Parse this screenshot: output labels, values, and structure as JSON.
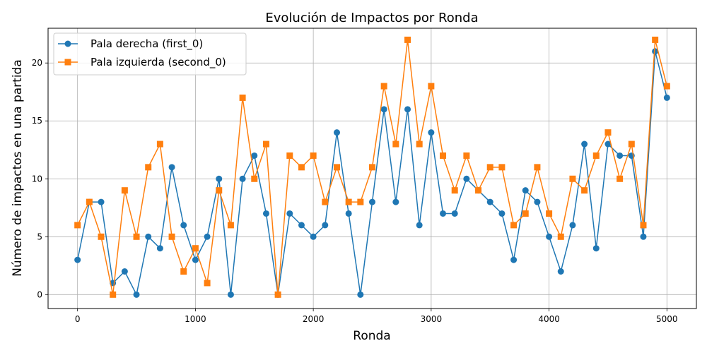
{
  "chart_data": {
    "type": "line",
    "title": "Evolución de Impactos por Ronda",
    "xlabel": "Ronda",
    "ylabel": "Número de impactos en una partida",
    "xlim": [
      -250,
      5250
    ],
    "ylim": [
      -1.2,
      23.0
    ],
    "xticks": [
      0,
      1000,
      2000,
      3000,
      4000,
      5000
    ],
    "yticks": [
      0,
      5,
      10,
      15,
      20
    ],
    "grid": true,
    "legend_position": "top-left",
    "x": [
      0,
      100,
      200,
      300,
      400,
      500,
      600,
      700,
      800,
      900,
      1000,
      1100,
      1200,
      1300,
      1400,
      1500,
      1600,
      1700,
      1800,
      1900,
      2000,
      2100,
      2200,
      2300,
      2400,
      2500,
      2600,
      2700,
      2800,
      2900,
      3000,
      3100,
      3200,
      3300,
      3400,
      3500,
      3600,
      3700,
      3800,
      3900,
      4000,
      4100,
      4200,
      4300,
      4400,
      4500,
      4600,
      4700,
      4800,
      4900,
      5000
    ],
    "series": [
      {
        "name": "Pala derecha (first_0)",
        "color": "#1f77b4",
        "marker": "circle",
        "values": [
          3,
          8,
          8,
          1,
          2,
          0,
          5,
          4,
          11,
          6,
          3,
          5,
          10,
          0,
          10,
          12,
          7,
          0,
          7,
          6,
          5,
          6,
          14,
          7,
          0,
          8,
          16,
          8,
          16,
          6,
          14,
          7,
          7,
          10,
          9,
          8,
          7,
          3,
          9,
          8,
          5,
          2,
          6,
          13,
          4,
          13,
          12,
          12,
          5,
          21,
          17
        ]
      },
      {
        "name": "Pala izquierda (second_0)",
        "color": "#ff7f0e",
        "marker": "square",
        "values": [
          6,
          8,
          5,
          0,
          9,
          5,
          11,
          13,
          5,
          2,
          4,
          1,
          9,
          6,
          17,
          10,
          13,
          0,
          12,
          11,
          12,
          8,
          11,
          8,
          8,
          11,
          18,
          13,
          22,
          13,
          18,
          12,
          9,
          12,
          9,
          11,
          11,
          6,
          7,
          11,
          7,
          5,
          10,
          9,
          12,
          14,
          10,
          13,
          6,
          22,
          18
        ]
      }
    ]
  }
}
